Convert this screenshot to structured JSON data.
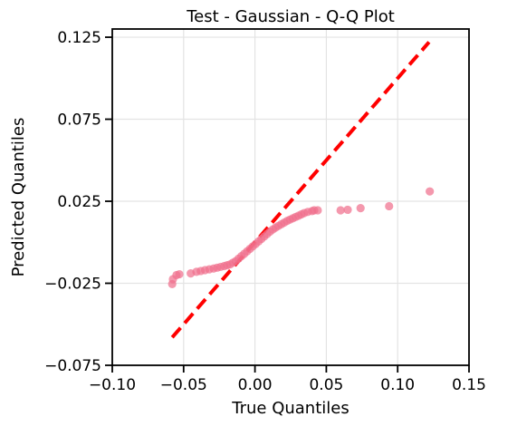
{
  "chart_data": {
    "type": "scatter",
    "title": "Test - Gaussian - Q-Q Plot",
    "xlabel": "True Quantiles",
    "ylabel": "Predicted Quantiles",
    "xlim": [
      -0.1,
      0.15
    ],
    "ylim": [
      -0.075,
      0.13
    ],
    "grid": true,
    "x_ticks": [
      -0.1,
      -0.05,
      0.0,
      0.05,
      0.1,
      0.15
    ],
    "x_tick_labels": [
      "−0.10",
      "−0.05",
      "0.00",
      "0.05",
      "0.10",
      "0.15"
    ],
    "y_ticks": [
      -0.075,
      -0.025,
      0.025,
      0.075,
      0.125
    ],
    "y_tick_labels": [
      "−0.075",
      "−0.025",
      "0.025",
      "0.075",
      "0.125"
    ],
    "colors": {
      "points": "#f0708d",
      "reference_line": "#ff0000"
    },
    "reference_line": {
      "x": [
        -0.058,
        0.122
      ],
      "y": [
        -0.058,
        0.122
      ]
    },
    "points": [
      {
        "x": -0.058,
        "y": -0.0255
      },
      {
        "x": -0.0575,
        "y": -0.0225
      },
      {
        "x": -0.055,
        "y": -0.02
      },
      {
        "x": -0.053,
        "y": -0.0195
      },
      {
        "x": -0.045,
        "y": -0.019
      },
      {
        "x": -0.041,
        "y": -0.018
      },
      {
        "x": -0.038,
        "y": -0.0175
      },
      {
        "x": -0.035,
        "y": -0.017
      },
      {
        "x": -0.032,
        "y": -0.0165
      },
      {
        "x": -0.029,
        "y": -0.016
      },
      {
        "x": -0.0265,
        "y": -0.0155
      },
      {
        "x": -0.024,
        "y": -0.015
      },
      {
        "x": -0.0215,
        "y": -0.0145
      },
      {
        "x": -0.0195,
        "y": -0.014
      },
      {
        "x": -0.0175,
        "y": -0.0135
      },
      {
        "x": -0.0155,
        "y": -0.0125
      },
      {
        "x": -0.0135,
        "y": -0.0115
      },
      {
        "x": -0.0115,
        "y": -0.01
      },
      {
        "x": -0.0095,
        "y": -0.0085
      },
      {
        "x": -0.0075,
        "y": -0.007
      },
      {
        "x": -0.0055,
        "y": -0.0055
      },
      {
        "x": -0.0035,
        "y": -0.004
      },
      {
        "x": -0.0015,
        "y": -0.0025
      },
      {
        "x": 0.0005,
        "y": -0.001
      },
      {
        "x": 0.0025,
        "y": 0.0005
      },
      {
        "x": 0.0045,
        "y": 0.002
      },
      {
        "x": 0.0065,
        "y": 0.0035
      },
      {
        "x": 0.0085,
        "y": 0.005
      },
      {
        "x": 0.0105,
        "y": 0.0065
      },
      {
        "x": 0.0125,
        "y": 0.0078
      },
      {
        "x": 0.0145,
        "y": 0.009
      },
      {
        "x": 0.0165,
        "y": 0.01
      },
      {
        "x": 0.0185,
        "y": 0.011
      },
      {
        "x": 0.0205,
        "y": 0.012
      },
      {
        "x": 0.0225,
        "y": 0.013
      },
      {
        "x": 0.0245,
        "y": 0.0138
      },
      {
        "x": 0.0265,
        "y": 0.0146
      },
      {
        "x": 0.0285,
        "y": 0.0154
      },
      {
        "x": 0.0305,
        "y": 0.0162
      },
      {
        "x": 0.0325,
        "y": 0.017
      },
      {
        "x": 0.0345,
        "y": 0.0178
      },
      {
        "x": 0.037,
        "y": 0.0185
      },
      {
        "x": 0.04,
        "y": 0.019
      },
      {
        "x": 0.0415,
        "y": 0.0195
      },
      {
        "x": 0.044,
        "y": 0.0195
      },
      {
        "x": 0.06,
        "y": 0.0195
      },
      {
        "x": 0.065,
        "y": 0.0198
      },
      {
        "x": 0.074,
        "y": 0.0208
      },
      {
        "x": 0.094,
        "y": 0.022
      },
      {
        "x": 0.1225,
        "y": 0.031
      }
    ]
  }
}
